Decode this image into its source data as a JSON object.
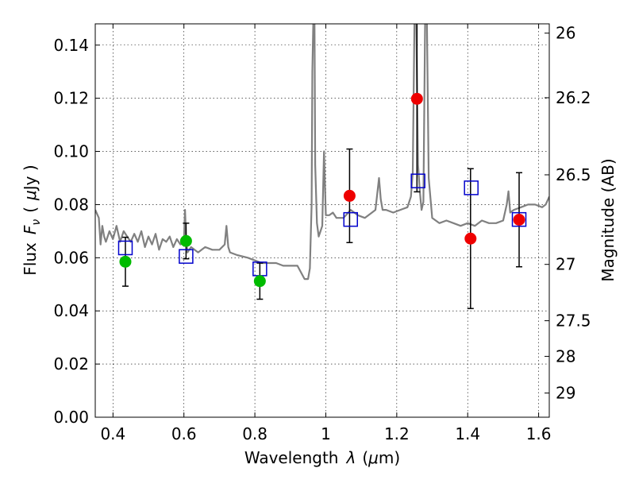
{
  "chart_data": {
    "type": "scatter",
    "xlabel": "Wavelength",
    "xlabel_symbol": "λ",
    "xlabel_unit_open": "(",
    "xlabel_unit_mu": "μ",
    "xlabel_unit_close": "m)",
    "ylabel": "Flux",
    "ylabel_symbol": "F",
    "ylabel_symbol_sub": "ν",
    "ylabel_unit_open": "(",
    "ylabel_unit_mu": "μ",
    "ylabel_unit_close": "Jy )",
    "y2label": "Magnitude (AB)",
    "xlim": [
      0.35,
      1.63
    ],
    "ylim": [
      0.0,
      0.148
    ],
    "grid": true,
    "x_ticks": [
      0.4,
      0.6,
      0.8,
      1.0,
      1.2,
      1.4,
      1.6
    ],
    "x_tick_labels": [
      "0.4",
      "0.6",
      "0.8",
      "1",
      "1.2",
      "1.4",
      "1.6"
    ],
    "y_ticks": [
      0.0,
      0.02,
      0.04,
      0.06,
      0.08,
      0.1,
      0.12,
      0.14
    ],
    "y_tick_labels": [
      "0.00",
      "0.02",
      "0.04",
      "0.06",
      "0.08",
      "0.10",
      "0.12",
      "0.14"
    ],
    "y2_ticks": [
      {
        "label": "26",
        "flux": 0.1445
      },
      {
        "label": "26.2",
        "flux": 0.1202
      },
      {
        "label": "26.5",
        "flux": 0.0912
      },
      {
        "label": "27",
        "flux": 0.0575
      },
      {
        "label": "27.5",
        "flux": 0.0363
      },
      {
        "label": "28",
        "flux": 0.0229
      },
      {
        "label": "29",
        "flux": 0.0091
      }
    ],
    "colors": {
      "model": "#808080",
      "optical": "#00bb00",
      "nir": "#ee0000",
      "model_band": "#0000cc",
      "errorbar": "#000000"
    },
    "series": [
      {
        "marker": "square-open",
        "color": "#0000cc",
        "x": [
          0.435,
          0.606,
          0.814,
          1.07,
          1.26,
          1.41,
          1.545
        ],
        "y": [
          0.0637,
          0.0605,
          0.0558,
          0.0744,
          0.0889,
          0.0863,
          0.0744
        ]
      },
      {
        "marker": "circle",
        "color": "#00bb00",
        "x": [
          0.435,
          0.606,
          0.814
        ],
        "y": [
          0.0585,
          0.0663,
          0.0512
        ],
        "yerr": [
          0.0092,
          0.0067,
          0.0068
        ]
      },
      {
        "marker": "circle",
        "color": "#ee0000",
        "x": [
          1.067,
          1.257,
          1.408,
          1.545
        ],
        "y": [
          0.0833,
          0.1198,
          0.0672,
          0.0743
        ],
        "yerr": [
          0.0176,
          0.035,
          0.0263,
          0.0177
        ]
      },
      {
        "marker": "line",
        "color": "#808080",
        "x": [
          0.35,
          0.36,
          0.365,
          0.37,
          0.375,
          0.38,
          0.39,
          0.4,
          0.41,
          0.42,
          0.43,
          0.44,
          0.45,
          0.46,
          0.47,
          0.48,
          0.49,
          0.5,
          0.51,
          0.52,
          0.53,
          0.54,
          0.55,
          0.56,
          0.57,
          0.58,
          0.59,
          0.6,
          0.603,
          0.606,
          0.61,
          0.62,
          0.63,
          0.64,
          0.66,
          0.68,
          0.7,
          0.715,
          0.72,
          0.725,
          0.73,
          0.75,
          0.78,
          0.8,
          0.82,
          0.84,
          0.86,
          0.88,
          0.9,
          0.92,
          0.94,
          0.95,
          0.955,
          0.96,
          0.962,
          0.965,
          0.968,
          0.97,
          0.975,
          0.98,
          0.985,
          0.99,
          0.995,
          1.0,
          1.01,
          1.02,
          1.03,
          1.05,
          1.07,
          1.09,
          1.11,
          1.13,
          1.14,
          1.15,
          1.155,
          1.16,
          1.17,
          1.19,
          1.21,
          1.23,
          1.24,
          1.245,
          1.25,
          1.255,
          1.26,
          1.265,
          1.27,
          1.275,
          1.28,
          1.285,
          1.29,
          1.3,
          1.32,
          1.34,
          1.36,
          1.38,
          1.4,
          1.42,
          1.44,
          1.46,
          1.48,
          1.5,
          1.51,
          1.515,
          1.52,
          1.53,
          1.55,
          1.57,
          1.59,
          1.61,
          1.62,
          1.63
        ],
        "y": [
          0.078,
          0.075,
          0.065,
          0.072,
          0.068,
          0.066,
          0.07,
          0.067,
          0.072,
          0.066,
          0.07,
          0.068,
          0.066,
          0.069,
          0.066,
          0.07,
          0.064,
          0.068,
          0.065,
          0.069,
          0.063,
          0.067,
          0.066,
          0.068,
          0.064,
          0.067,
          0.065,
          0.066,
          0.078,
          0.068,
          0.062,
          0.064,
          0.063,
          0.062,
          0.064,
          0.063,
          0.063,
          0.065,
          0.072,
          0.064,
          0.062,
          0.061,
          0.06,
          0.059,
          0.058,
          0.058,
          0.058,
          0.057,
          0.057,
          0.057,
          0.052,
          0.052,
          0.056,
          0.08,
          0.13,
          0.15,
          0.15,
          0.095,
          0.073,
          0.068,
          0.07,
          0.072,
          0.1,
          0.076,
          0.076,
          0.077,
          0.075,
          0.075,
          0.078,
          0.076,
          0.075,
          0.077,
          0.078,
          0.09,
          0.082,
          0.078,
          0.078,
          0.077,
          0.078,
          0.079,
          0.083,
          0.092,
          0.15,
          0.15,
          0.095,
          0.085,
          0.078,
          0.081,
          0.15,
          0.15,
          0.09,
          0.075,
          0.073,
          0.074,
          0.073,
          0.072,
          0.073,
          0.072,
          0.074,
          0.073,
          0.073,
          0.074,
          0.08,
          0.085,
          0.077,
          0.078,
          0.079,
          0.08,
          0.08,
          0.079,
          0.08,
          0.083
        ]
      }
    ]
  }
}
